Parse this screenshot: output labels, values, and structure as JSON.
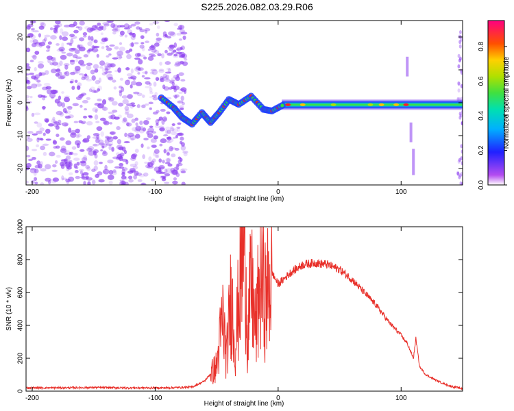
{
  "title": "S225.2026.082.03.29.R06",
  "colors": {
    "snr_line": "#e8302a",
    "spectrogram_noise": "#8a3cf0"
  },
  "chart_data": [
    {
      "type": "heatmap",
      "xlabel": "Height of straight line (km)",
      "ylabel": "Frequency (Hz)",
      "xlim": [
        -205,
        150
      ],
      "ylim": [
        -25,
        25
      ],
      "xticks": [
        -200,
        -100,
        0,
        100
      ],
      "yticks": [
        -20,
        -10,
        0,
        10,
        20
      ],
      "colorbar": {
        "label": "Normalized spectral amplitude",
        "range": [
          0.0,
          0.95
        ],
        "ticks": [
          "0.0",
          "0.2",
          "0.4",
          "0.6",
          "0.8"
        ]
      },
      "features": {
        "noise_region_x": [
          -205,
          -70
        ],
        "signal_track": [
          {
            "x": -95,
            "f": 1.5
          },
          {
            "x": -85,
            "f": -1.5
          },
          {
            "x": -78,
            "f": -4.5
          },
          {
            "x": -70,
            "f": -6.5
          },
          {
            "x": -62,
            "f": -3
          },
          {
            "x": -55,
            "f": -6
          },
          {
            "x": -48,
            "f": -3
          },
          {
            "x": -40,
            "f": 1
          },
          {
            "x": -32,
            "f": -0.5
          },
          {
            "x": -22,
            "f": 2
          },
          {
            "x": -12,
            "f": -2
          },
          {
            "x": -5,
            "f": -2.5
          },
          {
            "x": 5,
            "f": -0.5
          },
          {
            "x": 50,
            "f": -0.5
          },
          {
            "x": 100,
            "f": -0.7
          },
          {
            "x": 150,
            "f": -0.5
          }
        ],
        "vertical_streak_x": [
          105,
          108
        ]
      }
    },
    {
      "type": "line",
      "xlabel": "Height of straight line (km)",
      "ylabel": "SNR (10 * v/v)",
      "xlim": [
        -205,
        150
      ],
      "ylim": [
        0,
        1000
      ],
      "xticks": [
        -200,
        -100,
        0,
        100
      ],
      "yticks": [
        0,
        200,
        400,
        600,
        800,
        1000
      ],
      "series": [
        {
          "x": [
            -205,
            -180,
            -150,
            -120,
            -90,
            -70,
            -60,
            -50,
            -45,
            -42,
            -38,
            -35,
            -30,
            -27,
            -25,
            -22,
            -18,
            -15,
            -10,
            -5,
            0,
            10,
            20,
            30,
            40,
            50,
            60,
            70,
            80,
            90,
            100,
            105,
            110,
            112,
            115,
            120,
            130,
            140,
            150
          ],
          "y": [
            20,
            20,
            22,
            20,
            20,
            25,
            60,
            150,
            450,
            200,
            600,
            250,
            750,
            990,
            300,
            650,
            350,
            700,
            550,
            720,
            650,
            720,
            770,
            780,
            770,
            740,
            680,
            600,
            520,
            420,
            340,
            290,
            200,
            320,
            150,
            100,
            60,
            30,
            15
          ]
        }
      ]
    }
  ]
}
